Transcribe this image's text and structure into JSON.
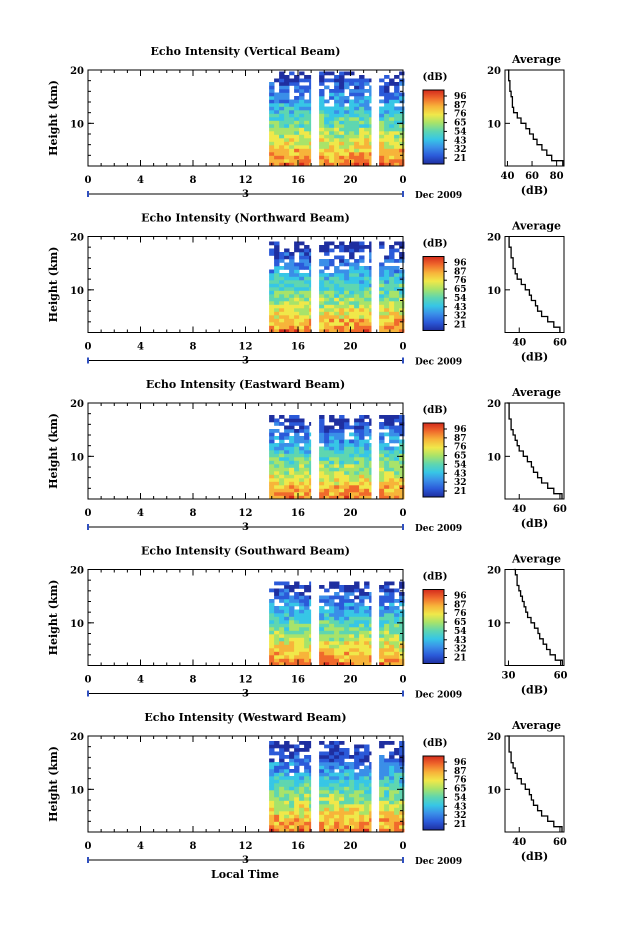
{
  "figure": {
    "xlabel": "Local Time",
    "date_label": "Dec 2009",
    "day_marker": "3",
    "colorbar_unit": "(dB)",
    "colorbar_ticks": [
      "96",
      "87",
      "76",
      "65",
      "54",
      "43",
      "32",
      "21"
    ],
    "colormap": [
      "#1f2fa0",
      "#2b5ad9",
      "#3a8ee8",
      "#37c6e6",
      "#5fd6b0",
      "#a8e36a",
      "#f0e84a",
      "#f7b43a",
      "#f06a2c",
      "#d42a1c"
    ]
  },
  "chart_data": [
    {
      "type": "heatmap",
      "title": "Echo Intensity (Vertical Beam)",
      "ylabel": "Height (km)",
      "xlim": [
        0,
        24
      ],
      "ylim": [
        2,
        20
      ],
      "x_ticks": [
        "0",
        "4",
        "8",
        "12",
        "16",
        "20",
        "0"
      ],
      "y_ticks": [
        "20",
        "10"
      ],
      "data_start_hour": 13.8,
      "gaps_hours": [
        [
          17.0,
          17.3
        ],
        [
          21.6,
          22.0
        ]
      ],
      "value_range_db": [
        21,
        96
      ],
      "top_height_km": 20,
      "profile": {
        "title": "Average",
        "xlabel": "(dB)",
        "x_ticks": [
          "40",
          "60",
          "80"
        ],
        "xlim": [
          38,
          86
        ],
        "y_ticks": [
          "20",
          "10"
        ],
        "height_km": [
          2,
          3,
          4,
          5,
          6,
          7,
          8,
          9,
          10,
          11,
          12,
          13,
          14,
          15,
          16,
          17,
          18,
          19,
          20
        ],
        "avg_db": [
          85,
          76,
          72,
          68,
          64,
          61,
          58,
          55,
          51,
          48,
          45,
          44,
          44,
          43,
          42,
          42,
          41,
          41,
          40
        ]
      }
    },
    {
      "type": "heatmap",
      "title": "Echo Intensity (Northward Beam)",
      "ylabel": "Height (km)",
      "xlim": [
        0,
        24
      ],
      "ylim": [
        2,
        20
      ],
      "x_ticks": [
        "0",
        "4",
        "8",
        "12",
        "16",
        "20",
        "0"
      ],
      "y_ticks": [
        "20",
        "10"
      ],
      "data_start_hour": 13.8,
      "gaps_hours": [
        [
          17.0,
          17.3
        ],
        [
          21.6,
          22.0
        ]
      ],
      "value_range_db": [
        21,
        96
      ],
      "top_height_km": 19,
      "profile": {
        "title": "Average",
        "xlabel": "(dB)",
        "x_ticks": [
          "40",
          "60"
        ],
        "xlim": [
          33,
          62
        ],
        "y_ticks": [
          "20",
          "10"
        ],
        "height_km": [
          2,
          3,
          4,
          5,
          6,
          7,
          8,
          9,
          10,
          11,
          12,
          13,
          14,
          15,
          16,
          17,
          18,
          19,
          20
        ],
        "avg_db": [
          60,
          57,
          54,
          51,
          49,
          48,
          46,
          45,
          43,
          41,
          39,
          38,
          37,
          37,
          36,
          36,
          35,
          35,
          35
        ]
      }
    },
    {
      "type": "heatmap",
      "title": "Echo Intensity (Eastward Beam)",
      "ylabel": "Height (km)",
      "xlim": [
        0,
        24
      ],
      "ylim": [
        2,
        20
      ],
      "x_ticks": [
        "0",
        "4",
        "8",
        "12",
        "16",
        "20",
        "0"
      ],
      "y_ticks": [
        "20",
        "10"
      ],
      "data_start_hour": 13.8,
      "gaps_hours": [
        [
          17.0,
          17.3
        ],
        [
          21.6,
          22.0
        ]
      ],
      "value_range_db": [
        21,
        96
      ],
      "top_height_km": 18,
      "profile": {
        "title": "Average",
        "xlabel": "(dB)",
        "x_ticks": [
          "40",
          "60"
        ],
        "xlim": [
          33,
          62
        ],
        "y_ticks": [
          "20",
          "10"
        ],
        "height_km": [
          2,
          3,
          4,
          5,
          6,
          7,
          8,
          9,
          10,
          11,
          12,
          13,
          14,
          15,
          16,
          17,
          18,
          19,
          20
        ],
        "avg_db": [
          61,
          57,
          54,
          51,
          49,
          47,
          46,
          44,
          42,
          40,
          39,
          38,
          37,
          36,
          36,
          35,
          35,
          35,
          34
        ]
      }
    },
    {
      "type": "heatmap",
      "title": "Echo Intensity (Southward Beam)",
      "ylabel": "Height (km)",
      "xlim": [
        0,
        24
      ],
      "ylim": [
        2,
        20
      ],
      "x_ticks": [
        "0",
        "4",
        "8",
        "12",
        "16",
        "20",
        "0"
      ],
      "y_ticks": [
        "20",
        "10"
      ],
      "data_start_hour": 13.8,
      "gaps_hours": [
        [
          17.0,
          17.3
        ],
        [
          21.6,
          22.0
        ]
      ],
      "value_range_db": [
        21,
        96
      ],
      "top_height_km": 18,
      "profile": {
        "title": "Average",
        "xlabel": "(dB)",
        "x_ticks": [
          "30",
          "60"
        ],
        "xlim": [
          28,
          62
        ],
        "y_ticks": [
          "20",
          "10"
        ],
        "height_km": [
          2,
          3,
          4,
          5,
          6,
          7,
          8,
          9,
          10,
          11,
          12,
          13,
          14,
          15,
          16,
          17,
          18,
          19,
          20
        ],
        "avg_db": [
          61,
          57,
          54,
          52,
          50,
          48,
          47,
          45,
          43,
          41,
          40,
          39,
          38,
          37,
          36,
          35,
          35,
          34,
          33
        ]
      }
    },
    {
      "type": "heatmap",
      "title": "Echo Intensity (Westward Beam)",
      "ylabel": "Height (km)",
      "xlim": [
        0,
        24
      ],
      "ylim": [
        2,
        20
      ],
      "x_ticks": [
        "0",
        "4",
        "8",
        "12",
        "16",
        "20",
        "0"
      ],
      "y_ticks": [
        "20",
        "10"
      ],
      "data_start_hour": 13.8,
      "gaps_hours": [
        [
          17.0,
          17.3
        ],
        [
          21.6,
          22.0
        ]
      ],
      "value_range_db": [
        21,
        96
      ],
      "top_height_km": 19,
      "profile": {
        "title": "Average",
        "xlabel": "(dB)",
        "x_ticks": [
          "40",
          "60"
        ],
        "xlim": [
          33,
          62
        ],
        "y_ticks": [
          "20",
          "10"
        ],
        "height_km": [
          2,
          3,
          4,
          5,
          6,
          7,
          8,
          9,
          10,
          11,
          12,
          13,
          14,
          15,
          16,
          17,
          18,
          19,
          20
        ],
        "avg_db": [
          61,
          57,
          54,
          51,
          49,
          47,
          46,
          45,
          43,
          41,
          39,
          38,
          37,
          36,
          36,
          35,
          35,
          35,
          34
        ]
      }
    }
  ]
}
